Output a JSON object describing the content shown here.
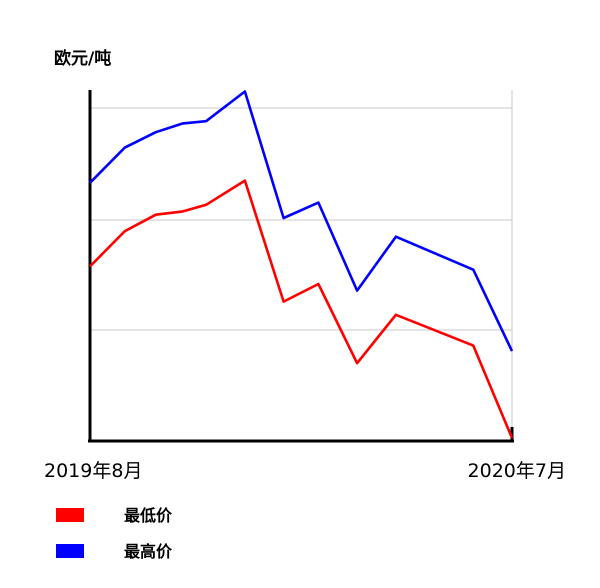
{
  "chart_data": {
    "type": "line",
    "ylabel": "欧元/吨",
    "x": [
      "2019年8月",
      "",
      "",
      "",
      "",
      "",
      "",
      "",
      "",
      "",
      "",
      "2020年7月"
    ],
    "x_tick_labels": [
      "2019年8月",
      "2020年7月"
    ],
    "ylim": [
      0,
      3
    ],
    "grid": true,
    "legend_position": "bottom-left",
    "series": [
      {
        "name": "最低价",
        "color": "#ff0000",
        "x": [
          0,
          0.9,
          1.7,
          2.4,
          3.0,
          4.0,
          5.0,
          5.9,
          6.9,
          7.9,
          9.9,
          10.9
        ],
        "values": [
          1.56,
          1.88,
          2.03,
          2.06,
          2.12,
          2.34,
          1.24,
          1.4,
          0.68,
          1.12,
          0.84,
          0.0
        ]
      },
      {
        "name": "最高价",
        "color": "#0000ff",
        "x": [
          0,
          0.9,
          1.7,
          2.4,
          3.0,
          4.0,
          5.0,
          5.9,
          6.9,
          7.9,
          9.9,
          10.9
        ],
        "values": [
          2.32,
          2.64,
          2.78,
          2.86,
          2.88,
          3.15,
          2.0,
          2.14,
          1.34,
          1.83,
          1.53,
          0.79
        ]
      }
    ]
  }
}
